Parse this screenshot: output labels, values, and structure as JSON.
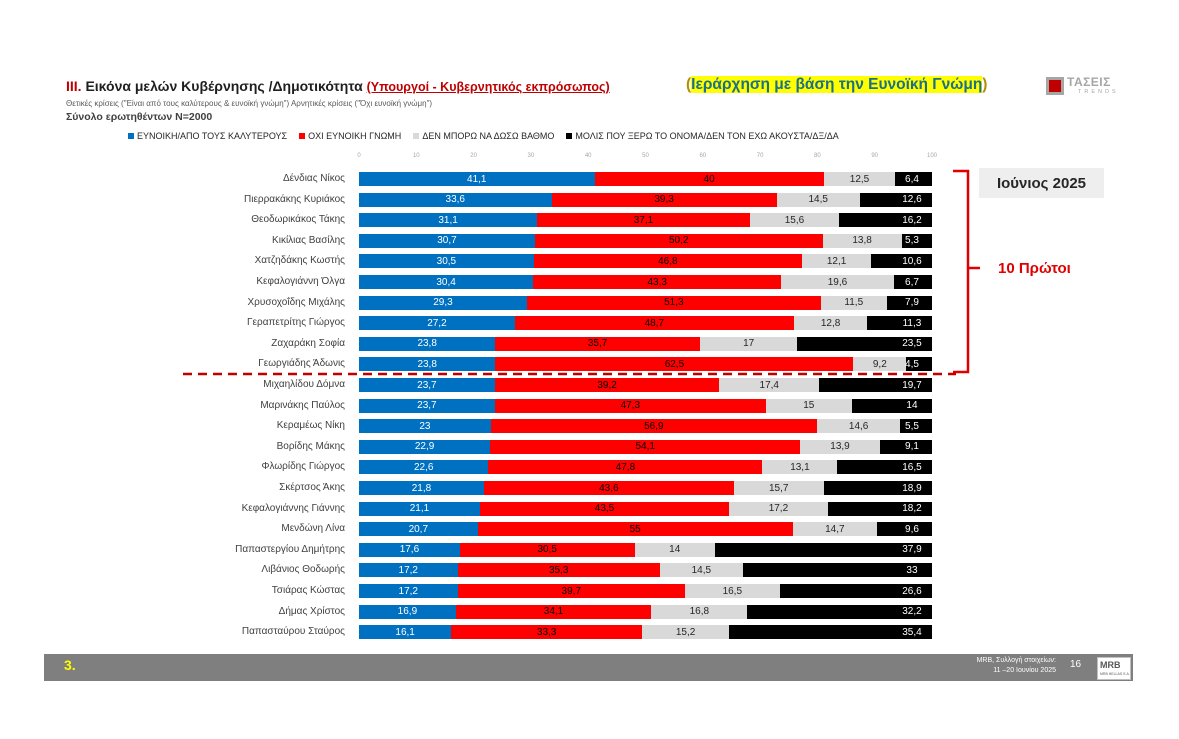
{
  "header": {
    "roman": "III.",
    "title": "Εικόνα μελών Κυβέρνησης /Δημοτικότητα",
    "subtitle": "(Υπουργοί - Κυβερνητικός εκπρόσωπος)",
    "ranking_open": "(",
    "ranking": "Ιεράρχηση με βάση την Ευνοϊκή Γνώμη",
    "ranking_close": ")",
    "criteria": "Θετικές κρίσεις (\"Είναι από τους καλύτερους & ευνοϊκή γνώμη\")  Αρνητικές κρίσεις (\"Όχι ευνοϊκή γνώμη\")",
    "total": "Σύνολο ερωτηθέντων Ν=2000"
  },
  "logo": {
    "name": "ΤΑΣΕΙΣ",
    "sub": "TRENDS"
  },
  "period_label": "Ιούνιος 2025",
  "top10_label": "10 Πρώτοι",
  "footer": {
    "number": "3.",
    "source_line1": "MRB, Συλλογή στοιχείων:",
    "source_line2": "11 –20 Ιουνίου 2025",
    "page": "16",
    "mrb_logo": "MRB",
    "mrb_sub": "MRB HELLAS S.A."
  },
  "colors": {
    "favorable": "#0070c0",
    "unfavorable": "#ff0000",
    "cant_rate": "#d9d9d9",
    "dont_know": "#000000",
    "accent_red": "#c00000"
  },
  "chart_data": {
    "type": "bar",
    "orientation": "horizontal-stacked",
    "title": "Εικόνα μελών Κυβέρνησης /Δημοτικότητα",
    "xlim": [
      0,
      100
    ],
    "xticks": [
      "0",
      "10",
      "20",
      "30",
      "40",
      "50",
      "60",
      "70",
      "80",
      "90",
      "100"
    ],
    "grid": false,
    "legend_position": "top",
    "categories": [
      "Δένδιας Νίκος",
      "Πιερρακάκης Κυριάκος",
      "Θεοδωρικάκος Τάκης",
      "Κικίλιας Βασίλης",
      "Χατζηδάκης Κωστής",
      "Κεφαλογιάννη Όλγα",
      "Χρυσοχοΐδης Μιχάλης",
      "Γεραπετρίτης Γιώργος",
      "Ζαχαράκη Σοφία",
      "Γεωργιάδης Άδωνις",
      "Μιχαηλίδου Δόμνα",
      "Μαρινάκης Παύλος",
      "Κεραμέως Νίκη",
      "Βορίδης Μάκης",
      "Φλωρίδης Γιώργος",
      "Σκέρτσος Άκης",
      "Κεφαλογιάννης Γιάννης",
      "Μενδώνη Λίνα",
      "Παπαστεργίου Δημήτρης",
      "Λιβάνιος Θοδωρής",
      "Τσιάρας Κώστας",
      "Δήμας Χρίστος",
      "Παπασταύρου Σταύρος"
    ],
    "series": [
      {
        "name": "ΕΥΝΟΙΚΗ/ΑΠΟ ΤΟΥΣ ΚΑΛΥΤΕΡΟΥΣ",
        "key": "fav",
        "values": [
          41.1,
          33.6,
          31.1,
          30.7,
          30.5,
          30.4,
          29.3,
          27.2,
          23.8,
          23.8,
          23.7,
          23.7,
          23,
          22.9,
          22.6,
          21.8,
          21.1,
          20.7,
          17.6,
          17.2,
          17.2,
          16.9,
          16.1
        ],
        "labels": [
          "41,1",
          "33,6",
          "31,1",
          "30,7",
          "30,5",
          "30,4",
          "29,3",
          "27,2",
          "23,8",
          "23,8",
          "23,7",
          "23,7",
          "23",
          "22,9",
          "22,6",
          "21,8",
          "21,1",
          "20,7",
          "17,6",
          "17,2",
          "17,2",
          "16,9",
          "16,1"
        ]
      },
      {
        "name": "ΟΧΙ ΕΥΝΟΙΚΗ ΓΝΩΜΗ",
        "key": "unf",
        "values": [
          40,
          39.3,
          37.1,
          50.2,
          46.8,
          43.3,
          51.3,
          48.7,
          35.7,
          62.5,
          39.2,
          47.3,
          56.9,
          54.1,
          47.8,
          43.6,
          43.5,
          55,
          30.5,
          35.3,
          39.7,
          34.1,
          33.3
        ],
        "labels": [
          "40",
          "39,3",
          "37,1",
          "50,2",
          "46,8",
          "43,3",
          "51,3",
          "48,7",
          "35,7",
          "62,5",
          "39,2",
          "47,3",
          "56,9",
          "54,1",
          "47,8",
          "43,6",
          "43,5",
          "55",
          "30,5",
          "35,3",
          "39,7",
          "34,1",
          "33,3"
        ]
      },
      {
        "name": "ΔΕΝ ΜΠΟΡΩ ΝΑ ΔΩΣΩ ΒΑΘΜΟ",
        "key": "dk",
        "values": [
          12.5,
          14.5,
          15.6,
          13.8,
          12.1,
          19.6,
          11.5,
          12.8,
          17,
          9.2,
          17.4,
          15,
          14.6,
          13.9,
          13.1,
          15.7,
          17.2,
          14.7,
          14,
          14.5,
          16.5,
          16.8,
          15.2
        ],
        "labels": [
          "12,5",
          "14,5",
          "15,6",
          "13,8",
          "12,1",
          "19,6",
          "11,5",
          "12,8",
          "17",
          "9,2",
          "17,4",
          "15",
          "14,6",
          "13,9",
          "13,1",
          "15,7",
          "17,2",
          "14,7",
          "14",
          "14,5",
          "16,5",
          "16,8",
          "15,2"
        ]
      },
      {
        "name": "ΜΟΛΙΣ ΠΟΥ ΞΕΡΩ ΤΟ ΟΝΟΜΑ/ΔΕΝ ΤΟΝ ΕΧΩ ΑΚΟΥΣΤΑ/ΔΞ/ΔΑ",
        "key": "nk",
        "values": [
          6.4,
          12.6,
          16.2,
          5.3,
          10.6,
          6.7,
          7.9,
          11.3,
          23.5,
          4.5,
          19.7,
          14,
          5.5,
          9.1,
          16.5,
          18.9,
          18.2,
          9.6,
          37.9,
          33,
          26.6,
          32.2,
          35.4
        ],
        "labels": [
          "6,4",
          "12,6",
          "16,2",
          "5,3",
          "10,6",
          "6,7",
          "7,9",
          "11,3",
          "23,5",
          "4,5",
          "19,7",
          "14",
          "5,5",
          "9,1",
          "16,5",
          "18,9",
          "18,2",
          "9,6",
          "37,9",
          "33",
          "26,6",
          "32,2",
          "35,4"
        ]
      }
    ]
  }
}
